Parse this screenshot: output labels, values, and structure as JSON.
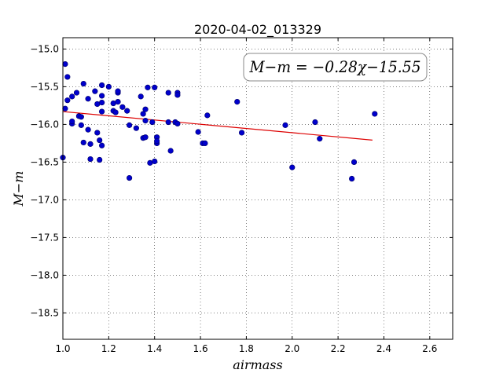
{
  "chart_data": {
    "type": "scatter",
    "title": "2020-04-02_013329",
    "xlabel": "airmass",
    "ylabel": "M−m",
    "xlim": [
      1.0,
      2.7
    ],
    "ylim": [
      -18.85,
      -14.85
    ],
    "y_inverted": true,
    "grid": true,
    "xticks": [
      1.0,
      1.2,
      1.4,
      1.6,
      1.8,
      2.0,
      2.2,
      2.4,
      2.6
    ],
    "xtick_labels": [
      "1.0",
      "1.2",
      "1.4",
      "1.6",
      "1.8",
      "2.0",
      "2.2",
      "2.4",
      "2.6"
    ],
    "yticks": [
      -15.0,
      -15.5,
      -16.0,
      -16.5,
      -17.0,
      -17.5,
      -18.0,
      -18.5
    ],
    "ytick_labels": [
      "−15.0",
      "−15.5",
      "−16.0",
      "−16.5",
      "−17.0",
      "−17.5",
      "−18.0",
      "−18.5"
    ],
    "annotation": "M−m = −0.28χ−15.55",
    "colors": {
      "points": "#0000cc",
      "fit": "#dd0000"
    },
    "fit": {
      "slope": -0.28,
      "intercept": -15.55,
      "x_range": [
        1.0,
        2.35
      ]
    },
    "points": {
      "x": [
        1.0,
        1.01,
        1.01,
        1.02,
        1.02,
        1.04,
        1.04,
        1.04,
        1.06,
        1.07,
        1.08,
        1.08,
        1.09,
        1.09,
        1.11,
        1.11,
        1.12,
        1.12,
        1.14,
        1.15,
        1.15,
        1.16,
        1.16,
        1.17,
        1.17,
        1.17,
        1.17,
        1.17,
        1.2,
        1.22,
        1.22,
        1.23,
        1.24,
        1.24,
        1.24,
        1.26,
        1.28,
        1.29,
        1.29,
        1.32,
        1.34,
        1.35,
        1.35,
        1.36,
        1.36,
        1.36,
        1.37,
        1.38,
        1.39,
        1.4,
        1.4,
        1.41,
        1.41,
        1.41,
        1.46,
        1.46,
        1.47,
        1.49,
        1.5,
        1.5,
        1.5,
        1.59,
        1.61,
        1.62,
        1.63,
        1.76,
        1.78,
        1.97,
        2.0,
        2.1,
        2.12,
        2.26,
        2.27,
        2.36
      ],
      "y": [
        -16.44,
        -15.79,
        -15.2,
        -15.37,
        -15.68,
        -15.99,
        -15.96,
        -15.63,
        -15.58,
        -15.89,
        -15.9,
        -16.01,
        -15.46,
        -16.24,
        -15.66,
        -16.07,
        -16.46,
        -16.26,
        -15.56,
        -16.11,
        -15.73,
        -16.21,
        -16.47,
        -15.48,
        -15.62,
        -15.71,
        -15.83,
        -16.28,
        -15.5,
        -15.72,
        -15.82,
        -15.84,
        -15.7,
        -15.58,
        -15.56,
        -15.77,
        -15.82,
        -16.71,
        -16.01,
        -16.05,
        -15.63,
        -15.86,
        -16.18,
        -15.8,
        -15.95,
        -16.17,
        -15.51,
        -16.51,
        -15.97,
        -15.51,
        -16.49,
        -16.17,
        -16.25,
        -16.22,
        -15.97,
        -15.58,
        -16.35,
        -15.97,
        -15.58,
        -15.61,
        -15.99,
        -16.1,
        -16.25,
        -16.25,
        -15.88,
        -15.7,
        -16.11,
        -16.01,
        -16.57,
        -15.97,
        -16.19,
        -16.72,
        -16.5,
        -15.86
      ]
    }
  }
}
